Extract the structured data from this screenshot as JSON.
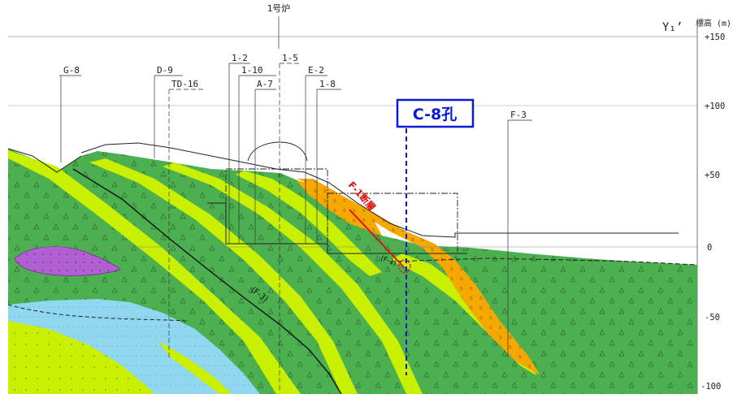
{
  "header": {
    "reactor_label": "1号炉",
    "section_label": "Y₁’",
    "elevation_label": "標高 (m)"
  },
  "elevation_ticks": [
    "+150",
    "+100",
    "+50",
    "0",
    "-50",
    "-100"
  ],
  "borehole_labels": {
    "g8": "G-8",
    "d9": "D-9",
    "td16": "TD-16",
    "b12": "1-2",
    "b110": "1-10",
    "a7": "A-7",
    "b15": "1-5",
    "e2": "E-2",
    "b18": "1-8",
    "f3": "F-3"
  },
  "c8": {
    "label": "C-8孔",
    "border_color": "#0a1ad8"
  },
  "faults": {
    "f1_label": "F-1断層",
    "f3_label": "(F-3)",
    "f1_small": "(F-1)",
    "f1_color": "#e01010"
  },
  "colors": {
    "green_rock": "#4caf50",
    "yellow_green": "#c8f000",
    "orange": "#f5a800",
    "light_blue": "#8fd8f0",
    "purple": "#b060d0"
  }
}
